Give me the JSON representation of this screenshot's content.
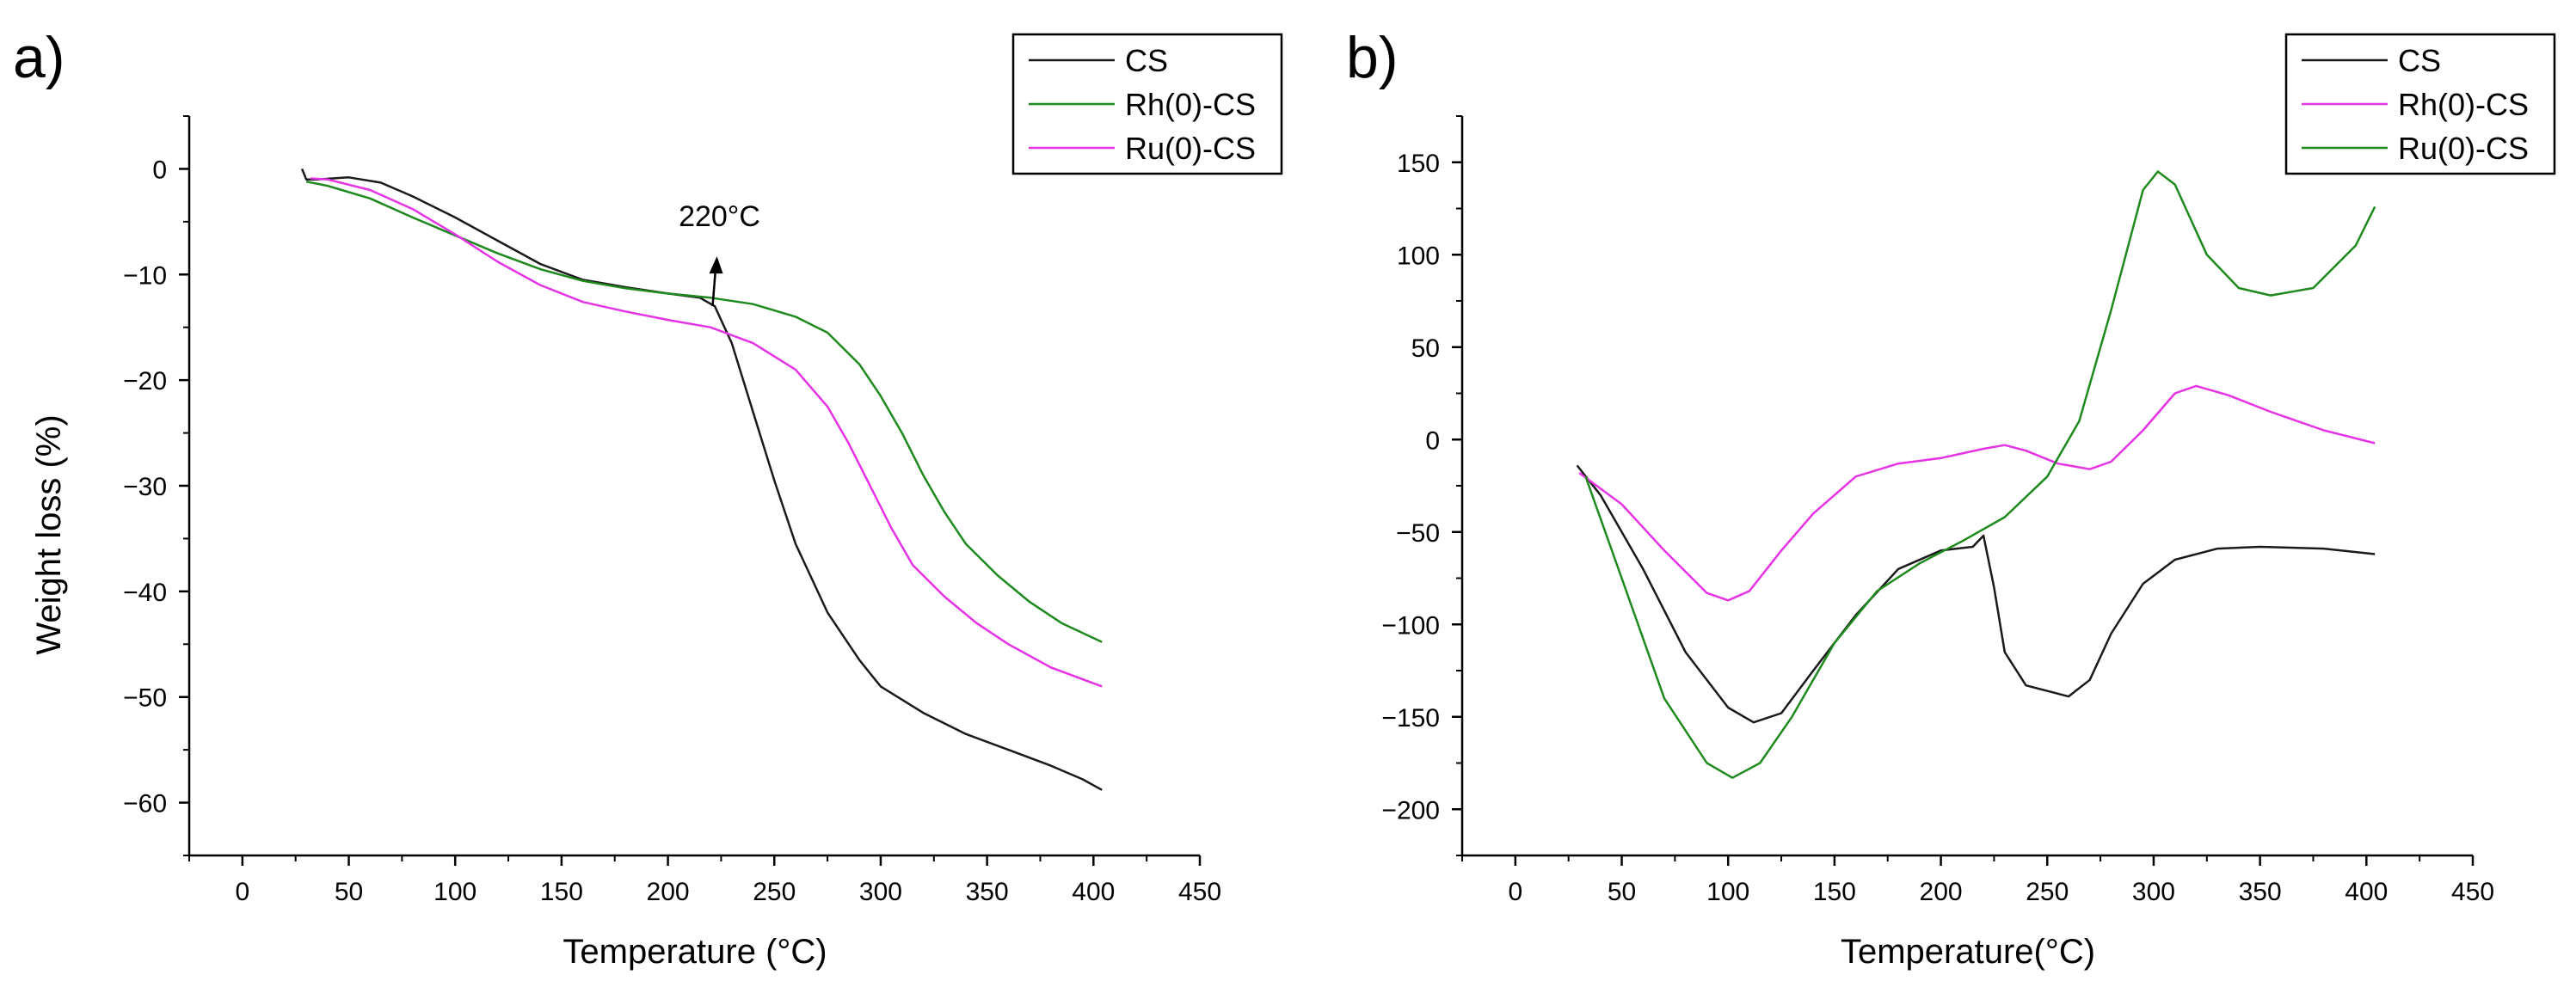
{
  "chart_data": [
    {
      "type": "line",
      "panel": "a)",
      "title": "",
      "xlabel": "Temperature (°C)",
      "ylabel": "Weight loss (%)",
      "xlim": [
        -25,
        450
      ],
      "ylim": [
        -65,
        5
      ],
      "xticks": [
        0,
        50,
        100,
        150,
        200,
        250,
        300,
        350,
        400,
        450
      ],
      "yticks": [
        0,
        -10,
        -20,
        -30,
        -40,
        -50,
        -60
      ],
      "grid": false,
      "legend_position": "top-right",
      "series": [
        {
          "name": "CS",
          "color": "#1a1a1a",
          "points": [
            [
              28,
              0
            ],
            [
              30,
              -1
            ],
            [
              35,
              -1
            ],
            [
              50,
              -0.8
            ],
            [
              65,
              -1.3
            ],
            [
              80,
              -2.6
            ],
            [
              100,
              -4.6
            ],
            [
              120,
              -6.8
            ],
            [
              140,
              -9.0
            ],
            [
              160,
              -10.5
            ],
            [
              180,
              -11.2
            ],
            [
              200,
              -11.8
            ],
            [
              215,
              -12.2
            ],
            [
              222,
              -13.0
            ],
            [
              230,
              -16.5
            ],
            [
              240,
              -23.0
            ],
            [
              250,
              -29.5
            ],
            [
              260,
              -35.5
            ],
            [
              275,
              -42.0
            ],
            [
              290,
              -46.5
            ],
            [
              300,
              -49.0
            ],
            [
              320,
              -51.5
            ],
            [
              340,
              -53.5
            ],
            [
              360,
              -55.0
            ],
            [
              380,
              -56.5
            ],
            [
              395,
              -57.8
            ],
            [
              404,
              -58.8
            ]
          ]
        },
        {
          "name": "Rh(0)-CS",
          "color": "#1e8a1e",
          "points": [
            [
              30,
              -1.2
            ],
            [
              40,
              -1.6
            ],
            [
              60,
              -2.8
            ],
            [
              80,
              -4.6
            ],
            [
              100,
              -6.3
            ],
            [
              120,
              -8.0
            ],
            [
              140,
              -9.5
            ],
            [
              160,
              -10.6
            ],
            [
              180,
              -11.3
            ],
            [
              200,
              -11.8
            ],
            [
              220,
              -12.2
            ],
            [
              240,
              -12.8
            ],
            [
              260,
              -14.0
            ],
            [
              275,
              -15.5
            ],
            [
              290,
              -18.5
            ],
            [
              300,
              -21.5
            ],
            [
              310,
              -25.0
            ],
            [
              320,
              -29.0
            ],
            [
              330,
              -32.5
            ],
            [
              340,
              -35.5
            ],
            [
              355,
              -38.5
            ],
            [
              370,
              -41.0
            ],
            [
              385,
              -43.0
            ],
            [
              404,
              -44.8
            ]
          ]
        },
        {
          "name": "Ru(0)-CS",
          "color": "#e633e6",
          "points": [
            [
              32,
              -0.9
            ],
            [
              40,
              -1.0
            ],
            [
              60,
              -2.0
            ],
            [
              80,
              -3.8
            ],
            [
              100,
              -6.2
            ],
            [
              120,
              -8.8
            ],
            [
              140,
              -11.0
            ],
            [
              160,
              -12.6
            ],
            [
              180,
              -13.5
            ],
            [
              200,
              -14.3
            ],
            [
              220,
              -15.0
            ],
            [
              240,
              -16.5
            ],
            [
              260,
              -19.0
            ],
            [
              275,
              -22.5
            ],
            [
              285,
              -26.0
            ],
            [
              295,
              -30.0
            ],
            [
              305,
              -34.0
            ],
            [
              315,
              -37.5
            ],
            [
              330,
              -40.5
            ],
            [
              345,
              -43.0
            ],
            [
              360,
              -45.0
            ],
            [
              380,
              -47.2
            ],
            [
              404,
              -49.0
            ]
          ]
        }
      ],
      "annotations": [
        {
          "text": "220°C",
          "x": 221,
          "y": -13
        }
      ]
    },
    {
      "type": "line",
      "panel": "b)",
      "title": "",
      "xlabel": "Temperature(°C)",
      "ylabel": "",
      "xlim": [
        -25,
        450
      ],
      "ylim": [
        -225,
        175
      ],
      "xticks": [
        0,
        50,
        100,
        150,
        200,
        250,
        300,
        350,
        400,
        450
      ],
      "yticks": [
        150,
        100,
        50,
        0,
        -50,
        -100,
        -150,
        -200
      ],
      "grid": false,
      "legend_position": "top-right",
      "series": [
        {
          "name": "CS",
          "color": "#1a1a1a",
          "points": [
            [
              29,
              -14
            ],
            [
              40,
              -30
            ],
            [
              60,
              -70
            ],
            [
              80,
              -115
            ],
            [
              100,
              -145
            ],
            [
              112,
              -153
            ],
            [
              125,
              -148
            ],
            [
              140,
              -125
            ],
            [
              160,
              -95
            ],
            [
              180,
              -70
            ],
            [
              200,
              -60
            ],
            [
              215,
              -58
            ],
            [
              220,
              -52
            ],
            [
              225,
              -80
            ],
            [
              230,
              -115
            ],
            [
              240,
              -133
            ],
            [
              260,
              -139
            ],
            [
              270,
              -130
            ],
            [
              280,
              -105
            ],
            [
              295,
              -78
            ],
            [
              310,
              -65
            ],
            [
              330,
              -59
            ],
            [
              350,
              -58
            ],
            [
              380,
              -59
            ],
            [
              404,
              -62
            ]
          ]
        },
        {
          "name": "Rh(0)-CS",
          "color": "#e633e6",
          "points": [
            [
              30,
              -18
            ],
            [
              50,
              -35
            ],
            [
              70,
              -60
            ],
            [
              90,
              -83
            ],
            [
              100,
              -87
            ],
            [
              110,
              -82
            ],
            [
              125,
              -60
            ],
            [
              140,
              -40
            ],
            [
              160,
              -20
            ],
            [
              180,
              -13
            ],
            [
              200,
              -10
            ],
            [
              220,
              -5
            ],
            [
              230,
              -3
            ],
            [
              240,
              -6
            ],
            [
              255,
              -13
            ],
            [
              270,
              -16
            ],
            [
              280,
              -12
            ],
            [
              295,
              5
            ],
            [
              310,
              25
            ],
            [
              320,
              29
            ],
            [
              335,
              24
            ],
            [
              355,
              15
            ],
            [
              380,
              5
            ],
            [
              404,
              -2
            ]
          ]
        },
        {
          "name": "Ru(0)-CS",
          "color": "#1e8a1e",
          "points": [
            [
              33,
              -20
            ],
            [
              50,
              -75
            ],
            [
              70,
              -140
            ],
            [
              90,
              -175
            ],
            [
              102,
              -183
            ],
            [
              115,
              -175
            ],
            [
              130,
              -150
            ],
            [
              150,
              -110
            ],
            [
              170,
              -82
            ],
            [
              190,
              -67
            ],
            [
              210,
              -55
            ],
            [
              230,
              -42
            ],
            [
              250,
              -20
            ],
            [
              265,
              10
            ],
            [
              280,
              70
            ],
            [
              295,
              135
            ],
            [
              302,
              145
            ],
            [
              310,
              138
            ],
            [
              325,
              100
            ],
            [
              340,
              82
            ],
            [
              355,
              78
            ],
            [
              375,
              82
            ],
            [
              395,
              105
            ],
            [
              404,
              126
            ]
          ]
        }
      ],
      "annotations": []
    }
  ]
}
